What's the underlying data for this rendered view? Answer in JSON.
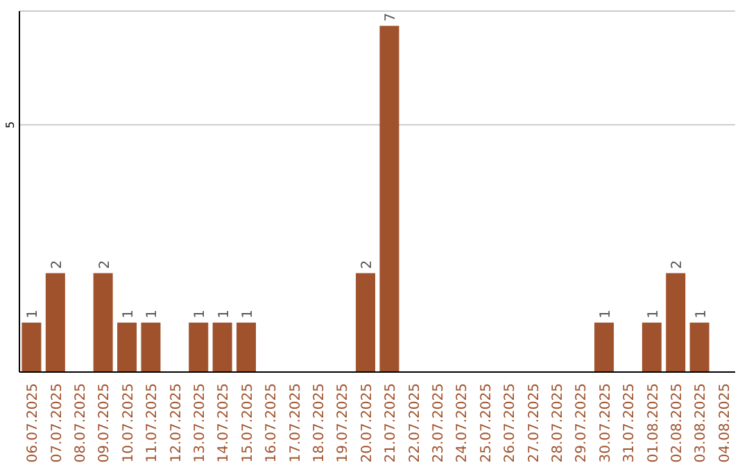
{
  "chart_data": {
    "type": "bar",
    "categories": [
      "06.07.2025",
      "07.07.2025",
      "08.07.2025",
      "09.07.2025",
      "10.07.2025",
      "11.07.2025",
      "12.07.2025",
      "13.07.2025",
      "14.07.2025",
      "15.07.2025",
      "16.07.2025",
      "17.07.2025",
      "18.07.2025",
      "19.07.2025",
      "20.07.2025",
      "21.07.2025",
      "22.07.2025",
      "23.07.2025",
      "24.07.2025",
      "25.07.2025",
      "26.07.2025",
      "27.07.2025",
      "28.07.2025",
      "29.07.2025",
      "30.07.2025",
      "31.07.2025",
      "01.08.2025",
      "02.08.2025",
      "03.08.2025",
      "04.08.2025"
    ],
    "values": [
      1,
      2,
      0,
      2,
      1,
      1,
      0,
      1,
      1,
      1,
      0,
      0,
      0,
      0,
      2,
      7,
      0,
      0,
      0,
      0,
      0,
      0,
      0,
      0,
      1,
      0,
      1,
      2,
      1,
      0
    ],
    "value_labels": [
      "1",
      "2",
      null,
      "2",
      "1",
      "1",
      null,
      "1",
      "1",
      "1",
      null,
      null,
      null,
      null,
      "2",
      "7",
      null,
      null,
      null,
      null,
      null,
      null,
      null,
      null,
      "1",
      null,
      "1",
      "2",
      "1",
      null
    ],
    "color": "#a0522d",
    "ylim": [
      0,
      7.3
    ],
    "yticks": [
      5
    ],
    "grid": "y"
  }
}
